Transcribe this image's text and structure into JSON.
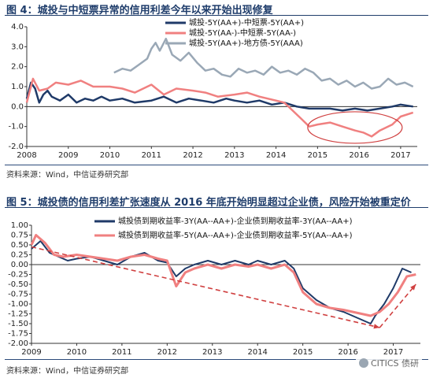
{
  "figure1": {
    "title": "图 4：城投与中短票异常的信用利差今年以来开始出现修复",
    "source": "资料来源：Wind，中信证券研究部"
  },
  "figure2": {
    "title": "图 5：城投债的信用利差扩张速度从 2016 年底开始明显超过企业债，风险开始被重定价",
    "source": "资料来源：Wind，中信证券研究部"
  },
  "watermark": "CITICS 债研",
  "chart_data": [
    {
      "type": "line",
      "title": "图 4：城投与中短票异常的信用利差今年以来开始出现修复",
      "xlabel": "",
      "ylabel": "",
      "x_ticks": [
        "2008",
        "2009",
        "2010",
        "2011",
        "2012",
        "2013",
        "2014",
        "2015",
        "2016",
        "2017"
      ],
      "y_ticks": [
        "4.0",
        "3.0",
        "2.0",
        "1.0",
        "0.0",
        "-1.0",
        "-2.0"
      ],
      "xlim": [
        2008,
        2017.4
      ],
      "ylim": [
        -2.0,
        4.0
      ],
      "legend_position": "top-right",
      "grid": false,
      "annotations": [
        {
          "type": "ellipse",
          "note": "highlight 2015-2016 trough",
          "color": "#d04040"
        }
      ],
      "series": [
        {
          "name": "城投-5Y(AA+)-中短票-5Y(AA+)",
          "color": "#1f3a68",
          "x": [
            2008.0,
            2008.1,
            2008.2,
            2008.3,
            2008.4,
            2008.5,
            2008.6,
            2008.8,
            2009.0,
            2009.2,
            2009.4,
            2009.6,
            2009.8,
            2010.0,
            2010.3,
            2010.6,
            2011.0,
            2011.3,
            2011.6,
            2011.9,
            2012.2,
            2012.5,
            2012.8,
            2013.0,
            2013.3,
            2013.6,
            2013.9,
            2014.2,
            2014.5,
            2014.8,
            2015.0,
            2015.3,
            2015.6,
            2015.9,
            2016.2,
            2016.5,
            2016.8,
            2017.0,
            2017.3
          ],
          "y": [
            0.4,
            1.2,
            0.9,
            0.2,
            0.6,
            0.8,
            0.5,
            0.3,
            0.6,
            0.2,
            0.4,
            0.3,
            0.5,
            0.3,
            0.4,
            0.2,
            0.3,
            0.5,
            0.2,
            0.4,
            0.3,
            0.2,
            0.4,
            0.3,
            0.2,
            0.3,
            0.1,
            0.2,
            0.0,
            -0.1,
            -0.1,
            -0.1,
            -0.2,
            -0.1,
            -0.2,
            -0.1,
            0.0,
            0.1,
            0.0
          ]
        },
        {
          "name": "城投-5Y(AA-)-中短票-5Y(AA-)",
          "color": "#f08080",
          "x": [
            2008.0,
            2008.15,
            2008.3,
            2008.5,
            2008.7,
            2009.0,
            2009.3,
            2009.6,
            2010.0,
            2010.3,
            2010.6,
            2011.0,
            2011.3,
            2011.6,
            2012.0,
            2012.3,
            2012.6,
            2013.0,
            2013.3,
            2013.6,
            2014.0,
            2014.2,
            2014.4,
            2014.6,
            2014.8,
            2015.0,
            2015.3,
            2015.6,
            2015.9,
            2016.1,
            2016.3,
            2016.5,
            2016.8,
            2017.0,
            2017.3
          ],
          "y": [
            0.2,
            1.4,
            0.8,
            0.9,
            1.2,
            1.1,
            1.3,
            1.0,
            1.0,
            0.9,
            0.7,
            1.1,
            0.6,
            0.9,
            0.8,
            0.7,
            0.5,
            0.6,
            0.7,
            0.5,
            0.3,
            0.2,
            -0.2,
            -0.6,
            -1.0,
            -0.9,
            -0.8,
            -1.0,
            -1.2,
            -1.3,
            -1.5,
            -1.2,
            -0.9,
            -0.5,
            -0.3
          ]
        },
        {
          "name": "城投-5Y(AA+)-地方债-5Y(AAA)",
          "color": "#9aa8b6",
          "x": [
            2010.1,
            2010.3,
            2010.5,
            2010.7,
            2010.9,
            2011.0,
            2011.1,
            2011.2,
            2011.35,
            2011.5,
            2011.7,
            2011.9,
            2012.1,
            2012.3,
            2012.5,
            2012.7,
            2012.9,
            2013.1,
            2013.3,
            2013.5,
            2013.7,
            2013.9,
            2014.1,
            2014.3,
            2014.5,
            2014.7,
            2014.9,
            2015.1,
            2015.3,
            2015.5,
            2015.7,
            2015.9,
            2016.1,
            2016.3,
            2016.5,
            2016.7,
            2016.9,
            2017.1,
            2017.3
          ],
          "y": [
            1.7,
            1.9,
            1.8,
            2.1,
            2.4,
            2.9,
            3.2,
            2.8,
            3.4,
            2.6,
            2.3,
            2.7,
            2.2,
            1.8,
            1.9,
            1.6,
            1.5,
            1.9,
            1.7,
            1.8,
            1.6,
            2.0,
            1.7,
            1.8,
            1.6,
            1.9,
            1.7,
            1.3,
            1.4,
            1.1,
            1.3,
            1.0,
            1.2,
            0.9,
            1.0,
            1.4,
            1.1,
            1.2,
            1.0
          ]
        }
      ]
    },
    {
      "type": "line",
      "title": "图 5：城投债的信用利差扩张速度从 2016 年底开始明显超过企业债，风险开始被重定价",
      "xlabel": "",
      "ylabel": "",
      "x_ticks": [
        "2009",
        "2010",
        "2011",
        "2012",
        "2013",
        "2014",
        "2015",
        "2016",
        "2017"
      ],
      "y_ticks": [
        "1.00",
        "0.75",
        "0.50",
        "0.25",
        "0.00",
        "-0.25",
        "-0.50",
        "-0.75",
        "-1.00",
        "-1.25",
        "-1.50",
        "-1.75",
        "-2.00"
      ],
      "xlim": [
        2009,
        2017.6
      ],
      "ylim": [
        -2.0,
        1.0
      ],
      "legend_position": "top-right",
      "grid": false,
      "annotations": [
        {
          "type": "arrow",
          "note": "downtrend 2009-2016",
          "color": "#d04040"
        },
        {
          "type": "arrow",
          "note": "uptrend 2016-2017",
          "color": "#d04040"
        }
      ],
      "series": [
        {
          "name": "城投债到期收益率-3Y(AA--AA+)-企业债到期收益率-3Y(AA--AA+)",
          "color": "#1f3a68",
          "x": [
            2009.0,
            2009.2,
            2009.4,
            2009.6,
            2009.8,
            2010.0,
            2010.3,
            2010.6,
            2010.9,
            2011.2,
            2011.5,
            2011.8,
            2012.0,
            2012.2,
            2012.4,
            2012.6,
            2012.9,
            2013.2,
            2013.5,
            2013.8,
            2014.0,
            2014.3,
            2014.6,
            2014.8,
            2015.0,
            2015.3,
            2015.6,
            2015.9,
            2016.1,
            2016.3,
            2016.5,
            2016.6,
            2016.8,
            2017.0,
            2017.2,
            2017.4
          ],
          "y": [
            0.4,
            0.6,
            0.3,
            0.2,
            0.1,
            0.15,
            0.2,
            0.1,
            0.0,
            0.2,
            0.3,
            0.1,
            0.05,
            -0.3,
            -0.1,
            0.0,
            0.1,
            0.0,
            0.1,
            0.0,
            0.1,
            0.0,
            0.1,
            -0.1,
            -0.6,
            -0.9,
            -1.1,
            -1.2,
            -1.3,
            -1.4,
            -1.5,
            -1.3,
            -1.0,
            -0.6,
            -0.1,
            -0.2
          ]
        },
        {
          "name": "城投债到期收益率-5Y(AA--AA+)-企业债到期收益率-5Y(AA--AA+)",
          "color": "#f08080",
          "x": [
            2009.0,
            2009.1,
            2009.3,
            2009.5,
            2009.7,
            2010.0,
            2010.3,
            2010.6,
            2010.9,
            2011.2,
            2011.5,
            2011.8,
            2012.0,
            2012.2,
            2012.4,
            2012.6,
            2012.9,
            2013.2,
            2013.5,
            2013.8,
            2014.0,
            2014.3,
            2014.6,
            2014.8,
            2015.0,
            2015.3,
            2015.6,
            2015.9,
            2016.1,
            2016.3,
            2016.5,
            2016.7,
            2016.9,
            2017.1,
            2017.3,
            2017.5
          ],
          "y": [
            0.5,
            0.75,
            0.55,
            0.25,
            0.2,
            0.25,
            0.2,
            0.15,
            0.1,
            0.2,
            0.25,
            0.15,
            0.1,
            -0.55,
            -0.2,
            -0.1,
            0.0,
            -0.1,
            0.0,
            -0.05,
            0.0,
            -0.1,
            0.0,
            -0.2,
            -0.7,
            -1.0,
            -1.1,
            -1.15,
            -1.2,
            -1.25,
            -1.3,
            -1.2,
            -1.0,
            -0.7,
            -0.3,
            -0.25
          ]
        }
      ]
    }
  ]
}
